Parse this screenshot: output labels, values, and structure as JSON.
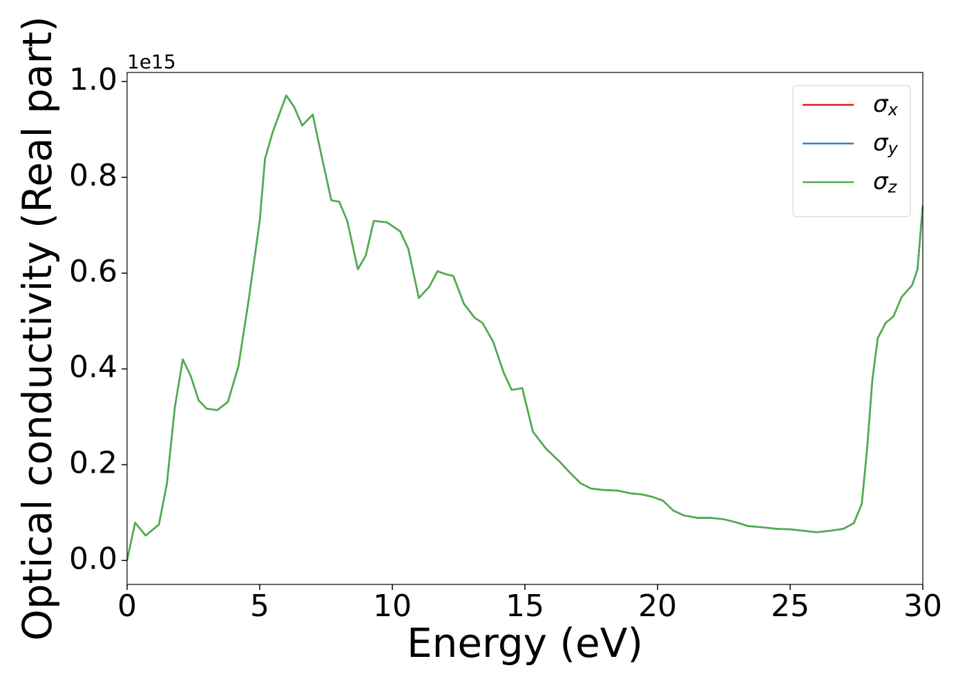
{
  "chart_data": {
    "type": "line",
    "xlabel": "Energy (eV)",
    "ylabel": "Optical conductivity (Real part)",
    "y_offset_label": "1e15",
    "x": [
      0,
      0.3,
      0.7,
      1.2,
      1.5,
      1.8,
      2.1,
      2.4,
      2.7,
      3.0,
      3.4,
      3.8,
      4.2,
      4.6,
      5.0,
      5.2,
      5.5,
      6.0,
      6.3,
      6.6,
      7.0,
      7.3,
      7.7,
      8.0,
      8.3,
      8.7,
      9.0,
      9.3,
      9.8,
      10.3,
      10.6,
      11.0,
      11.4,
      11.7,
      12.0,
      12.3,
      12.7,
      13.1,
      13.4,
      13.8,
      14.2,
      14.5,
      14.9,
      15.3,
      15.8,
      16.3,
      16.7,
      17.1,
      17.5,
      18.0,
      18.5,
      19.0,
      19.4,
      19.8,
      20.2,
      20.6,
      21.0,
      21.5,
      22.0,
      22.5,
      23.0,
      23.4,
      24.0,
      24.5,
      25.0,
      25.5,
      26.0,
      26.5,
      27.0,
      27.4,
      27.7,
      27.9,
      28.1,
      28.3,
      28.6,
      28.9,
      29.2,
      29.6,
      29.8,
      30.0
    ],
    "series": [
      {
        "name": "σx",
        "color": "#e41a1c",
        "values": [
          0.0,
          0.079,
          0.052,
          0.075,
          0.16,
          0.32,
          0.42,
          0.385,
          0.334,
          0.317,
          0.314,
          0.331,
          0.406,
          0.55,
          0.709,
          0.839,
          0.896,
          0.971,
          0.947,
          0.908,
          0.931,
          0.853,
          0.752,
          0.749,
          0.709,
          0.608,
          0.637,
          0.709,
          0.706,
          0.687,
          0.651,
          0.548,
          0.572,
          0.604,
          0.598,
          0.594,
          0.536,
          0.507,
          0.496,
          0.457,
          0.392,
          0.356,
          0.36,
          0.269,
          0.233,
          0.207,
          0.183,
          0.161,
          0.15,
          0.147,
          0.146,
          0.14,
          0.138,
          0.133,
          0.125,
          0.104,
          0.094,
          0.089,
          0.089,
          0.086,
          0.079,
          0.072,
          0.069,
          0.066,
          0.065,
          0.062,
          0.059,
          0.062,
          0.066,
          0.078,
          0.118,
          0.233,
          0.378,
          0.464,
          0.496,
          0.51,
          0.55,
          0.575,
          0.608,
          0.741
        ]
      },
      {
        "name": "σy",
        "color": "#377eb8",
        "values": [
          0.0,
          0.079,
          0.052,
          0.075,
          0.16,
          0.32,
          0.42,
          0.385,
          0.334,
          0.317,
          0.314,
          0.331,
          0.406,
          0.55,
          0.709,
          0.839,
          0.896,
          0.971,
          0.947,
          0.908,
          0.931,
          0.853,
          0.752,
          0.749,
          0.709,
          0.608,
          0.637,
          0.709,
          0.706,
          0.687,
          0.651,
          0.548,
          0.572,
          0.604,
          0.598,
          0.594,
          0.536,
          0.507,
          0.496,
          0.457,
          0.392,
          0.356,
          0.36,
          0.269,
          0.233,
          0.207,
          0.183,
          0.161,
          0.15,
          0.147,
          0.146,
          0.14,
          0.138,
          0.133,
          0.125,
          0.104,
          0.094,
          0.089,
          0.089,
          0.086,
          0.079,
          0.072,
          0.069,
          0.066,
          0.065,
          0.062,
          0.059,
          0.062,
          0.066,
          0.078,
          0.118,
          0.233,
          0.378,
          0.464,
          0.496,
          0.51,
          0.55,
          0.575,
          0.608,
          0.741
        ]
      },
      {
        "name": "σz",
        "color": "#4daf4a",
        "values": [
          0.0,
          0.079,
          0.052,
          0.075,
          0.16,
          0.32,
          0.42,
          0.385,
          0.334,
          0.317,
          0.314,
          0.331,
          0.406,
          0.55,
          0.709,
          0.839,
          0.896,
          0.971,
          0.947,
          0.908,
          0.931,
          0.853,
          0.752,
          0.749,
          0.709,
          0.608,
          0.637,
          0.709,
          0.706,
          0.687,
          0.651,
          0.548,
          0.572,
          0.604,
          0.598,
          0.594,
          0.536,
          0.507,
          0.496,
          0.457,
          0.392,
          0.356,
          0.36,
          0.269,
          0.233,
          0.207,
          0.183,
          0.161,
          0.15,
          0.147,
          0.146,
          0.14,
          0.138,
          0.133,
          0.125,
          0.104,
          0.094,
          0.089,
          0.089,
          0.086,
          0.079,
          0.072,
          0.069,
          0.066,
          0.065,
          0.062,
          0.059,
          0.062,
          0.066,
          0.078,
          0.118,
          0.233,
          0.378,
          0.464,
          0.496,
          0.51,
          0.55,
          0.575,
          0.608,
          0.741
        ]
      }
    ],
    "xlim": [
      0,
      30
    ],
    "xticks": [
      0,
      5,
      10,
      15,
      20,
      25,
      30
    ],
    "ylim": [
      -0.05,
      1.019
    ],
    "yticks": [
      {
        "value": 0,
        "label": "0.0"
      },
      0.2,
      0.4,
      0.6,
      0.8,
      {
        "value": 1,
        "label": "1.0"
      }
    ],
    "grid": false,
    "legend": "upper right"
  }
}
